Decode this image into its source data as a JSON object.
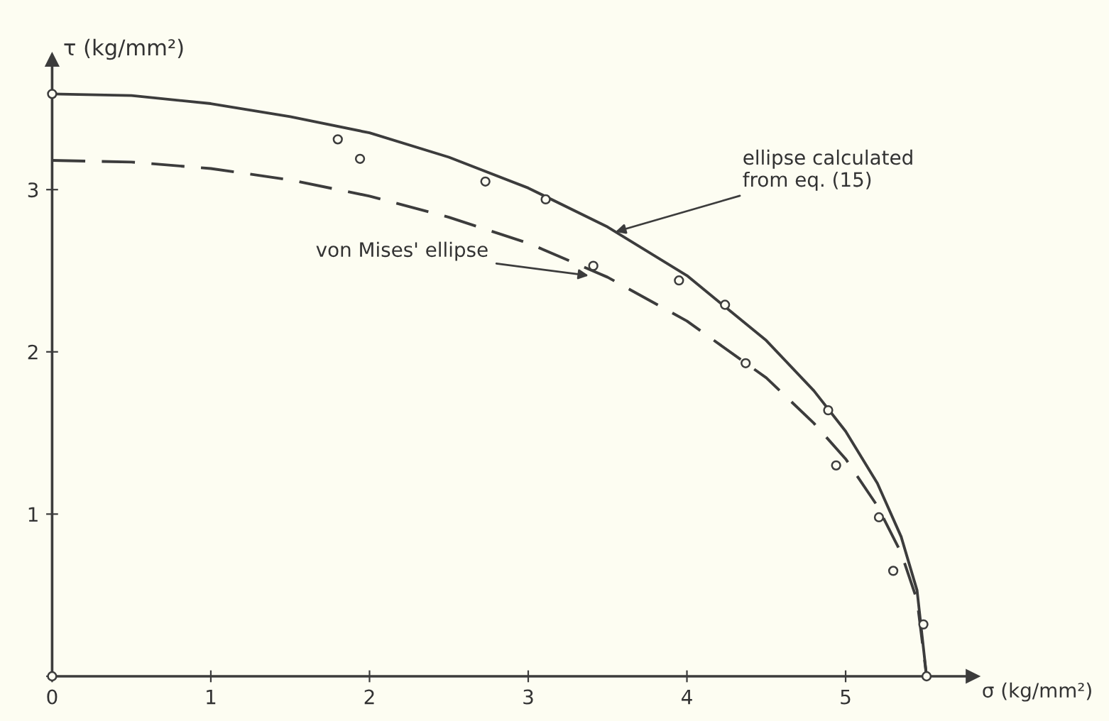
{
  "chart_data": {
    "type": "line",
    "xlabel": "σ (kg/mm²)",
    "ylabel": "τ (kg/mm²)",
    "xlim": [
      0,
      5.8
    ],
    "ylim": [
      0,
      3.8
    ],
    "xticks": [
      0,
      1,
      2,
      3,
      4,
      5
    ],
    "yticks": [
      {
        "value": 0,
        "label": null
      },
      1,
      2,
      3
    ],
    "grid": false,
    "legend": false,
    "series": [
      {
        "line_style": "solid",
        "marker": "none",
        "color": "#3c3c3c",
        "x": [
          0,
          0.5,
          1,
          1.5,
          2,
          2.5,
          3,
          3.5,
          4,
          4.5,
          4.8,
          5,
          5.2,
          5.35,
          5.45,
          5.51
        ],
        "values": [
          3.59,
          3.58,
          3.53,
          3.45,
          3.35,
          3.2,
          3.01,
          2.77,
          2.47,
          2.07,
          1.76,
          1.51,
          1.19,
          0.86,
          0.53,
          0
        ]
      },
      {
        "line_style": "dashed",
        "marker": "none",
        "color": "#3c3c3c",
        "x": [
          0,
          0.5,
          1,
          1.5,
          2,
          2.5,
          3,
          3.5,
          4,
          4.5,
          4.8,
          5,
          5.2,
          5.35,
          5.45,
          5.51
        ],
        "values": [
          3.18,
          3.17,
          3.13,
          3.06,
          2.96,
          2.83,
          2.67,
          2.46,
          2.19,
          1.84,
          1.56,
          1.34,
          1.05,
          0.76,
          0.47,
          0
        ]
      },
      {
        "type": "scatter",
        "marker": "circle",
        "color": "#3c3c3c",
        "x": [
          0,
          0,
          1.8,
          1.94,
          2.73,
          3.11,
          3.41,
          3.95,
          4.24,
          4.37,
          4.89,
          4.94,
          5.21,
          5.3,
          5.49,
          5.51
        ],
        "values": [
          0,
          3.59,
          3.31,
          3.19,
          3.05,
          2.94,
          2.53,
          2.44,
          2.29,
          1.93,
          1.64,
          1.3,
          0.98,
          0.65,
          0.32,
          0
        ]
      }
    ],
    "annotations": [
      {
        "text": "ellipse calculated\nfrom eq. (15)",
        "x": 3.55,
        "y": 2.74
      },
      {
        "text": "von Mises' ellipse",
        "x": 3.38,
        "y": 2.47
      }
    ]
  }
}
